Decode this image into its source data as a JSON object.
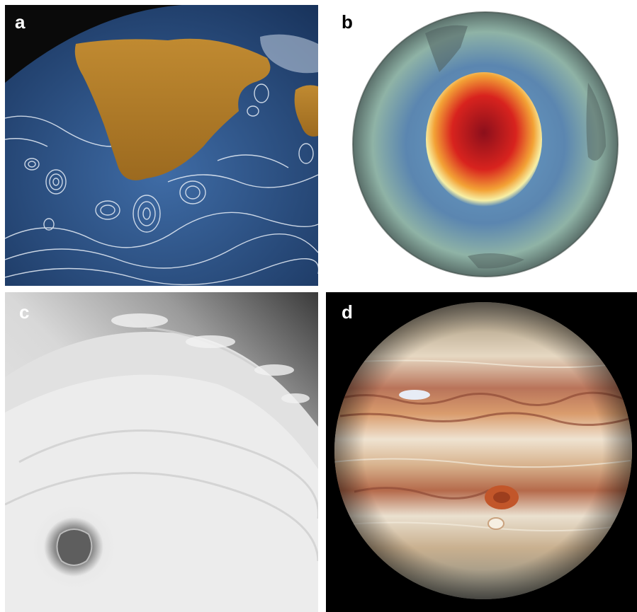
{
  "panels": [
    {
      "label": "a",
      "label_color": "#ffffff"
    },
    {
      "label": "b",
      "label_color": "#000000"
    },
    {
      "label": "c",
      "label_color": "#ffffff"
    },
    {
      "label": "d",
      "label_color": "#ffffff"
    }
  ],
  "colors": {
    "ocean": "#2f5b93",
    "land": "#b47b25",
    "ozone_hole": "#c8141c",
    "storm_cloud": "#e2e2e2",
    "jupiter_band": "#c9a27e"
  }
}
